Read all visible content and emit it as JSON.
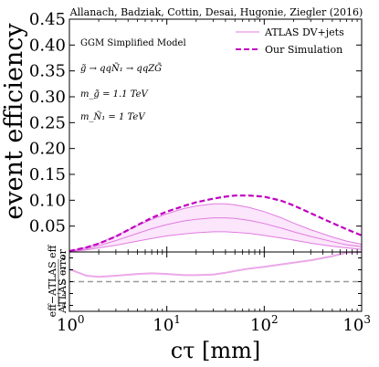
{
  "chart_data": {
    "type": "line",
    "title": "Allanach, Badziak, Cottin, Desai, Hugonie, Ziegler (2016)",
    "xlabel": "cτ [mm]",
    "ylabel": "event efficiency",
    "ratio_ylabel_num": "eff−ATLAS eff",
    "ratio_ylabel_den": "ATLAS error",
    "x_scale": "log",
    "xlim": [
      1,
      1000
    ],
    "ylim": [
      0,
      0.45
    ],
    "ratio_ylim": [
      -5,
      5
    ],
    "x_ticks": [
      1,
      10,
      100,
      1000
    ],
    "x_tick_labels": [
      "10^0",
      "10^1",
      "10^2",
      "10^3"
    ],
    "y_ticks": [
      0.05,
      0.1,
      0.15,
      0.2,
      0.25,
      0.3,
      0.35,
      0.4,
      0.45
    ],
    "y_tick_labels": [
      "0.05",
      "0.10",
      "0.15",
      "0.20",
      "0.25",
      "0.30",
      "0.35",
      "0.40",
      "0.45"
    ],
    "ratio_ticks": [
      4,
      2,
      0,
      -2,
      -4
    ],
    "ratio_tick_labels": [
      "4",
      "2",
      "0",
      "−2",
      "−4"
    ],
    "legend_position": "top-right",
    "annotations": [
      "GGM Simplified Model",
      "g̃ → qqÑ₁ → qqZG̃",
      "m_g̃ = 1.1 TeV",
      "m_Ñ₁ = 1 TeV"
    ],
    "series": [
      {
        "name": "ATLAS DV+jets",
        "color": "#e17be0",
        "style": "solid",
        "x": [
          1,
          1.5,
          2,
          3,
          5,
          7,
          10,
          15,
          20,
          30,
          40,
          50,
          70,
          100,
          150,
          200,
          300,
          500,
          700,
          1000
        ],
        "y": [
          0.001,
          0.006,
          0.012,
          0.022,
          0.036,
          0.045,
          0.053,
          0.06,
          0.063,
          0.066,
          0.066,
          0.065,
          0.061,
          0.055,
          0.046,
          0.039,
          0.03,
          0.02,
          0.014,
          0.01
        ],
        "band_upper": [
          0.002,
          0.009,
          0.017,
          0.031,
          0.051,
          0.063,
          0.074,
          0.084,
          0.089,
          0.093,
          0.093,
          0.091,
          0.086,
          0.078,
          0.066,
          0.056,
          0.043,
          0.029,
          0.021,
          0.015
        ],
        "band_lower": [
          0.0005,
          0.004,
          0.008,
          0.013,
          0.021,
          0.026,
          0.031,
          0.035,
          0.037,
          0.039,
          0.039,
          0.038,
          0.036,
          0.032,
          0.027,
          0.023,
          0.017,
          0.011,
          0.008,
          0.005
        ]
      },
      {
        "name": "Our Simulation",
        "color": "#c000c0",
        "style": "dashed",
        "x": [
          1,
          1.5,
          2,
          3,
          5,
          7,
          10,
          15,
          20,
          30,
          40,
          50,
          70,
          100,
          150,
          200,
          300,
          500,
          700,
          1000
        ],
        "y": [
          0.002,
          0.009,
          0.016,
          0.03,
          0.052,
          0.066,
          0.078,
          0.089,
          0.096,
          0.103,
          0.107,
          0.109,
          0.109,
          0.107,
          0.099,
          0.09,
          0.075,
          0.056,
          0.044,
          0.032
        ]
      }
    ],
    "ratio_series": {
      "name": "ratio",
      "color": "#eba8e8",
      "x": [
        1,
        1.5,
        2,
        3,
        5,
        7,
        10,
        15,
        20,
        30,
        40,
        50,
        70,
        100,
        150,
        200,
        300,
        500,
        700,
        1000
      ],
      "y": [
        2.1,
        1.0,
        0.8,
        1.0,
        1.3,
        1.4,
        1.3,
        1.1,
        1.1,
        1.2,
        1.5,
        1.8,
        2.2,
        2.5,
        2.9,
        3.2,
        3.6,
        4.3,
        4.9,
        5.3
      ]
    }
  }
}
